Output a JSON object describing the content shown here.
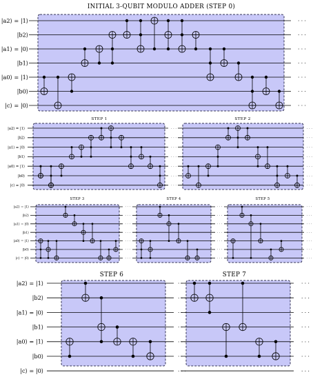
{
  "qubits": [
    "|a2⟩ = |1⟩",
    "|b2⟩",
    "|a1⟩ = |0⟩",
    "|b1⟩",
    "|a0⟩ = |1⟩",
    "|b0⟩",
    "|c⟩ = |0⟩"
  ],
  "continuation": "· · ·",
  "colors": {
    "box_fill": "#c8c8f8",
    "box_border": "#333355",
    "wire": "#000000"
  },
  "panels": [
    {
      "id": "step0",
      "title": "INITIAL 3-QUBIT MODULO ADDER (STEP 0)",
      "gates": [
        {
          "t": "cx",
          "c": [
            4
          ],
          "x": 5
        },
        {
          "t": "cx",
          "c": [
            4
          ],
          "x": 6
        },
        {
          "t": "cx",
          "c": [
            5
          ],
          "x": 4
        },
        {
          "t": "cx",
          "c": [
            2
          ],
          "x": 3
        },
        {
          "t": "cx",
          "c": [
            3
          ],
          "x": 2
        },
        {
          "t": "ccx",
          "c": [
            2,
            3
          ],
          "x": 1
        },
        {
          "t": "cx",
          "c": [
            0
          ],
          "x": 1
        },
        {
          "t": "ccx",
          "c": [
            0,
            1
          ],
          "x": 2
        },
        {
          "t": "cx",
          "c": [
            2
          ],
          "x": 0
        },
        {
          "t": "ccx",
          "c": [
            0,
            2
          ],
          "x": 1
        },
        {
          "t": "ccx",
          "c": [
            0,
            1
          ],
          "x": 2
        },
        {
          "t": "cx",
          "c": [
            2
          ],
          "x": 1
        },
        {
          "t": "ccx",
          "c": [
            2,
            3
          ],
          "x": 4
        },
        {
          "t": "cx",
          "c": [
            2
          ],
          "x": 3
        },
        {
          "t": "cx",
          "c": [
            3
          ],
          "x": 4
        },
        {
          "t": "ccx",
          "c": [
            4,
            5
          ],
          "x": 6
        },
        {
          "t": "cx",
          "c": [
            4
          ],
          "x": 5
        },
        {
          "t": "cx",
          "c": [
            5
          ],
          "x": 6
        }
      ]
    },
    {
      "id": "step1",
      "title": "STEP 1",
      "gates": [
        {
          "t": "cx",
          "c": [
            4
          ],
          "x": 5
        },
        {
          "t": "cx",
          "c": [
            4
          ],
          "x": 6
        },
        {
          "t": "cx",
          "c": [
            5
          ],
          "x": 4
        },
        {
          "t": "cx",
          "c": [
            2
          ],
          "x": 3
        },
        {
          "t": "cx",
          "c": [
            3
          ],
          "x": 2
        },
        {
          "t": "ccx",
          "c": [
            2,
            3
          ],
          "x": 1
        },
        {
          "t": "cx",
          "c": [
            0
          ],
          "x": 1
        },
        {
          "t": "ccx",
          "c": [
            1,
            2
          ],
          "x": 0
        },
        {
          "t": "cx",
          "c": [
            2
          ],
          "x": 1
        },
        {
          "t": "ccx",
          "c": [
            2,
            3
          ],
          "x": 4
        },
        {
          "t": "cx",
          "c": [
            2
          ],
          "x": 3
        },
        {
          "t": "cx",
          "c": [
            3
          ],
          "x": 4
        },
        {
          "t": "ccx",
          "c": [
            4,
            5
          ],
          "x": 6
        },
        {
          "t": "cx",
          "c": [
            4
          ],
          "x": 5
        },
        {
          "t": "cx",
          "c": [
            5
          ],
          "x": 6
        }
      ]
    },
    {
      "id": "step2",
      "title": "STEP 2",
      "gates": [
        {
          "t": "cx",
          "c": [
            4
          ],
          "x": 5
        },
        {
          "t": "cx",
          "c": [
            4
          ],
          "x": 6
        },
        {
          "t": "cx",
          "c": [
            5
          ],
          "x": 4
        },
        {
          "t": "ccx",
          "c": [
            3,
            4
          ],
          "x": 2
        },
        {
          "t": "cx",
          "c": [
            0
          ],
          "x": 1
        },
        {
          "t": "ccx",
          "c": [
            1,
            2
          ],
          "x": 0
        },
        {
          "t": "cx",
          "c": [
            0
          ],
          "x": 1
        },
        {
          "t": "ccx",
          "c": [
            2,
            4
          ],
          "x": 3
        },
        {
          "t": "cx",
          "c": [
            2
          ],
          "x": 4
        },
        {
          "t": "ccx",
          "c": [
            4,
            5
          ],
          "x": 6
        },
        {
          "t": "cx",
          "c": [
            4
          ],
          "x": 5
        },
        {
          "t": "cx",
          "c": [
            5
          ],
          "x": 6
        }
      ]
    },
    {
      "id": "step3",
      "title": "STEP 3",
      "gates": [
        {
          "t": "ccx",
          "c": [
            5,
            6
          ],
          "x": 4
        },
        {
          "t": "ccx",
          "c": [
            4,
            6
          ],
          "x": 5
        },
        {
          "t": "cx",
          "c": [
            4
          ],
          "x": 6
        },
        {
          "t": "cx",
          "c": [
            0
          ],
          "x": 1
        },
        {
          "t": "cx",
          "c": [
            1
          ],
          "x": 2
        },
        {
          "t": "ccx",
          "c": [
            2,
            4
          ],
          "x": 3
        },
        {
          "t": "cx",
          "c": [
            2
          ],
          "x": 4
        },
        {
          "t": "cx",
          "c": [
            4
          ],
          "x": 6
        },
        {
          "t": "cx",
          "c": [
            5
          ],
          "x": 6
        },
        {
          "t": "cx",
          "c": [
            4
          ],
          "x": 5
        }
      ]
    },
    {
      "id": "step4",
      "title": "STEP 4",
      "gates": [
        {
          "t": "ccx",
          "c": [
            5,
            6
          ],
          "x": 4
        },
        {
          "t": "ccx",
          "c": [
            4,
            6
          ],
          "x": 5
        },
        {
          "t": "cx",
          "c": [
            0
          ],
          "x": 1
        },
        {
          "t": "ccx",
          "c": [
            1,
            4
          ],
          "x": 2
        },
        {
          "t": "cx",
          "c": [
            2
          ],
          "x": 4
        },
        {
          "t": "cx",
          "c": [
            4
          ],
          "x": 6
        },
        {
          "t": "cx",
          "c": [
            5
          ],
          "x": 6
        }
      ]
    },
    {
      "id": "step5",
      "title": "STEP 5",
      "gates": [
        {
          "t": "cx",
          "c": [
            6
          ],
          "x": 4
        },
        {
          "t": "cx",
          "c": [
            0
          ],
          "x": 1
        },
        {
          "t": "ccx",
          "c": [
            1,
            6
          ],
          "x": 2
        },
        {
          "t": "cx",
          "c": [
            2
          ],
          "x": 4
        },
        {
          "t": "cx",
          "c": [
            5
          ],
          "x": 6
        },
        {
          "t": "cx",
          "c": [
            4
          ],
          "x": 5
        }
      ]
    },
    {
      "id": "step6",
      "title": "STEP 6",
      "gates": [
        {
          "t": "cx",
          "c": [
            5
          ],
          "x": 4
        },
        {
          "t": "cx",
          "c": [
            0
          ],
          "x": 1
        },
        {
          "t": "ccx",
          "c": [
            1,
            4
          ],
          "x": 3
        },
        {
          "t": "cx",
          "c": [
            3
          ],
          "x": 4
        },
        {
          "t": "cx",
          "c": [
            5
          ],
          "x": 4
        },
        {
          "t": "cx",
          "c": [
            4
          ],
          "x": 5
        }
      ]
    },
    {
      "id": "step7",
      "title": "STEP 7",
      "gates": [
        {
          "t": "cx",
          "c": [
            0
          ],
          "x": 1
        },
        {
          "t": "ccx",
          "c": [
            0,
            2
          ],
          "x": 1
        },
        {
          "t": "cx",
          "c": [
            5
          ],
          "x": 3
        },
        {
          "t": "cx",
          "c": [
            0
          ],
          "x": 3
        },
        {
          "t": "cx",
          "c": [
            5
          ],
          "x": 4
        },
        {
          "t": "cx",
          "c": [
            4
          ],
          "x": 5
        }
      ]
    }
  ]
}
